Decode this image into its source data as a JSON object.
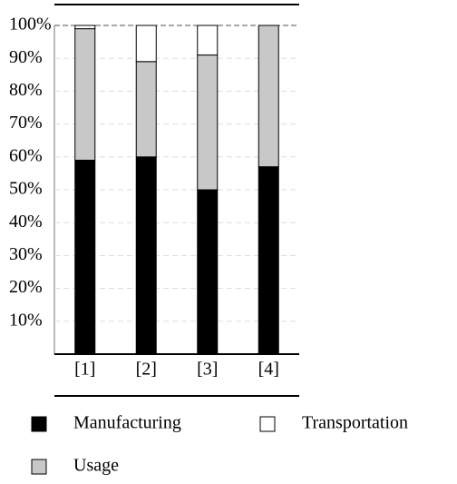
{
  "chart_data": {
    "type": "stacked_bar",
    "categories": [
      "[1]",
      "[2]",
      "[3]",
      "[4]"
    ],
    "series": [
      {
        "name": "Manufacturing",
        "color": "#000000",
        "values": [
          59,
          60,
          50,
          57
        ]
      },
      {
        "name": "Usage",
        "color": "#c8c8c8",
        "values": [
          40,
          29,
          41,
          43
        ]
      },
      {
        "name": "Transportation",
        "color": "#ffffff",
        "values": [
          1,
          11,
          9,
          0
        ]
      }
    ],
    "ylim": [
      0,
      100
    ],
    "yticks": [
      {
        "value": 10,
        "label": "10%"
      },
      {
        "value": 20,
        "label": "20%"
      },
      {
        "value": 30,
        "label": "30%"
      },
      {
        "value": 40,
        "label": "40%"
      },
      {
        "value": 50,
        "label": "50%"
      },
      {
        "value": 60,
        "label": "60%"
      },
      {
        "value": 70,
        "label": "70%"
      },
      {
        "value": 80,
        "label": "80%"
      },
      {
        "value": 90,
        "label": "90%"
      },
      {
        "value": 100,
        "label": "100%"
      }
    ],
    "grid": true
  }
}
